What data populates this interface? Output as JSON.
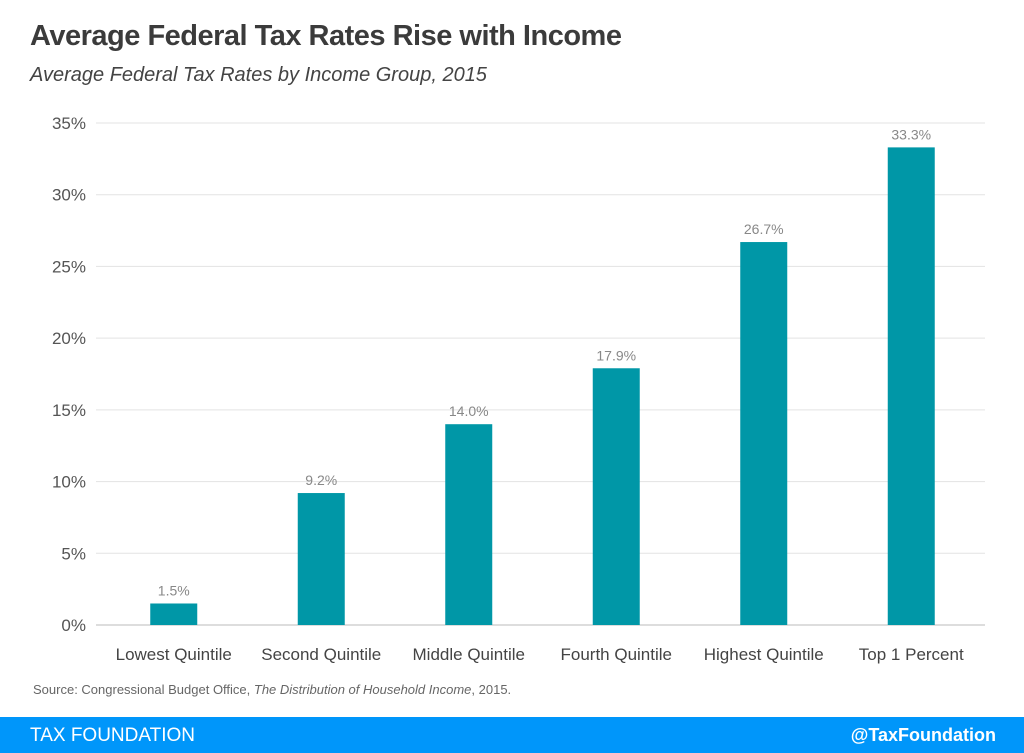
{
  "title": "Average Federal Tax Rates Rise with Income",
  "subtitle": "Average Federal Tax Rates by Income Group, 2015",
  "source": {
    "prefix": "Source: Congressional Budget Office, ",
    "italic": "The Distribution of Household Income",
    "suffix": ", 2015."
  },
  "footer": {
    "brand": "TAX FOUNDATION",
    "handle": "@TaxFoundation",
    "color": "#0096fa"
  },
  "chart_data": {
    "type": "bar",
    "categories": [
      "Lowest Quintile",
      "Second Quintile",
      "Middle Quintile",
      "Fourth Quintile",
      "Highest Quintile",
      "Top 1 Percent"
    ],
    "values": [
      1.5,
      9.2,
      14.0,
      17.9,
      26.7,
      33.3
    ],
    "data_labels": [
      "1.5%",
      "9.2%",
      "14.0%",
      "17.9%",
      "26.7%",
      "33.3%"
    ],
    "ylim": [
      0,
      35
    ],
    "yticks": [
      0,
      5,
      10,
      15,
      20,
      25,
      30,
      35
    ],
    "ytick_labels": [
      "0%",
      "5%",
      "10%",
      "15%",
      "20%",
      "25%",
      "30%",
      "35%"
    ],
    "grid": true,
    "bar_color": "#0097a7"
  }
}
